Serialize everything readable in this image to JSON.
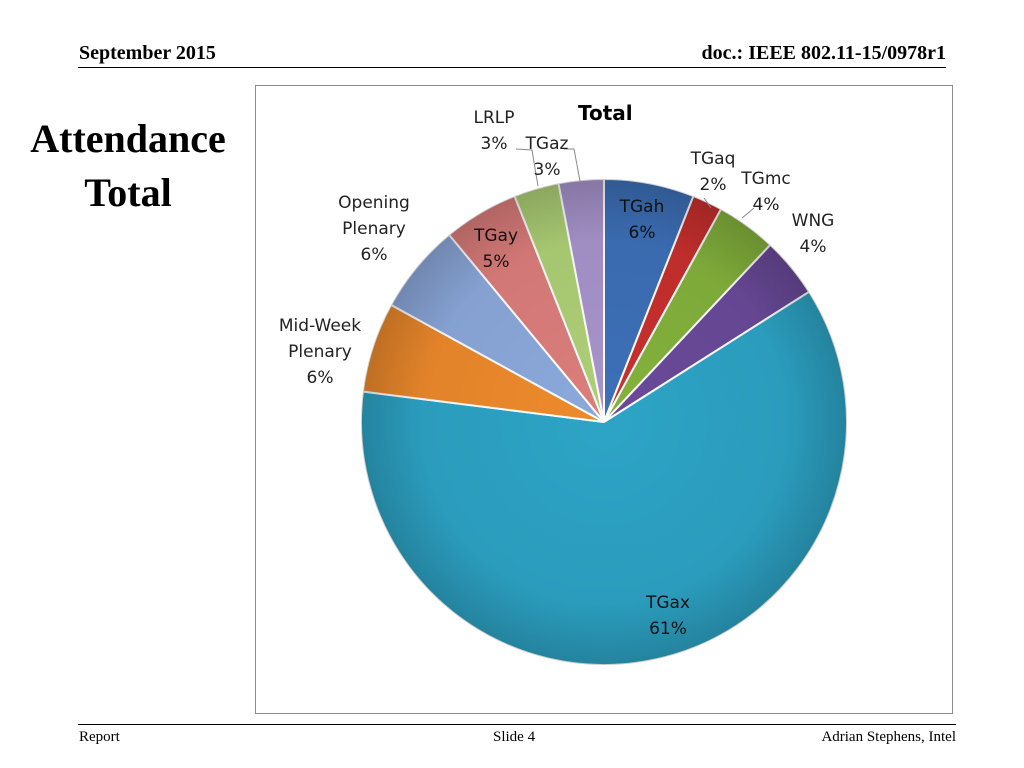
{
  "header": {
    "date": "September 2015",
    "doc": "doc.: IEEE 802.11-15/0978r1"
  },
  "slide": {
    "title_line1": "Attendance",
    "title_line2": "Total"
  },
  "footer": {
    "left": "Report",
    "center": "Slide 4",
    "right": "Adrian Stephens, Intel"
  },
  "chart_data": {
    "type": "pie",
    "title": "Total",
    "unit": "%",
    "slices": [
      {
        "name": "TGah",
        "value": 6,
        "label_lines": [
          "TGah",
          "6%"
        ],
        "color": "#3d70b8"
      },
      {
        "name": "TGaq",
        "value": 2,
        "label_lines": [
          "TGaq",
          "2%"
        ],
        "color": "#c8302e"
      },
      {
        "name": "TGmc",
        "value": 4,
        "label_lines": [
          "TGmc",
          "4%"
        ],
        "color": "#84b23c"
      },
      {
        "name": "WNG",
        "value": 4,
        "label_lines": [
          "WNG",
          "4%"
        ],
        "color": "#6a4a9a"
      },
      {
        "name": "TGax",
        "value": 61,
        "label_lines": [
          "TGax",
          "61%"
        ],
        "color": "#2da4c6"
      },
      {
        "name": "Mid-Week Plenary",
        "value": 6,
        "label_lines": [
          "Mid-Week",
          "Plenary",
          "6%"
        ],
        "color": "#ee8a2c"
      },
      {
        "name": "Opening Plenary",
        "value": 6,
        "label_lines": [
          "Opening",
          "Plenary",
          "6%"
        ],
        "color": "#8ca9dc"
      },
      {
        "name": "TGay",
        "value": 5,
        "label_lines": [
          "TGay",
          "5%"
        ],
        "color": "#dc7e7c"
      },
      {
        "name": "LRLP",
        "value": 3,
        "label_lines": [
          "LRLP",
          "3%"
        ],
        "color": "#aed076"
      },
      {
        "name": "TGaz",
        "value": 3,
        "label_lines": [
          "TGaz",
          "3%"
        ],
        "color": "#a894cc"
      }
    ]
  }
}
